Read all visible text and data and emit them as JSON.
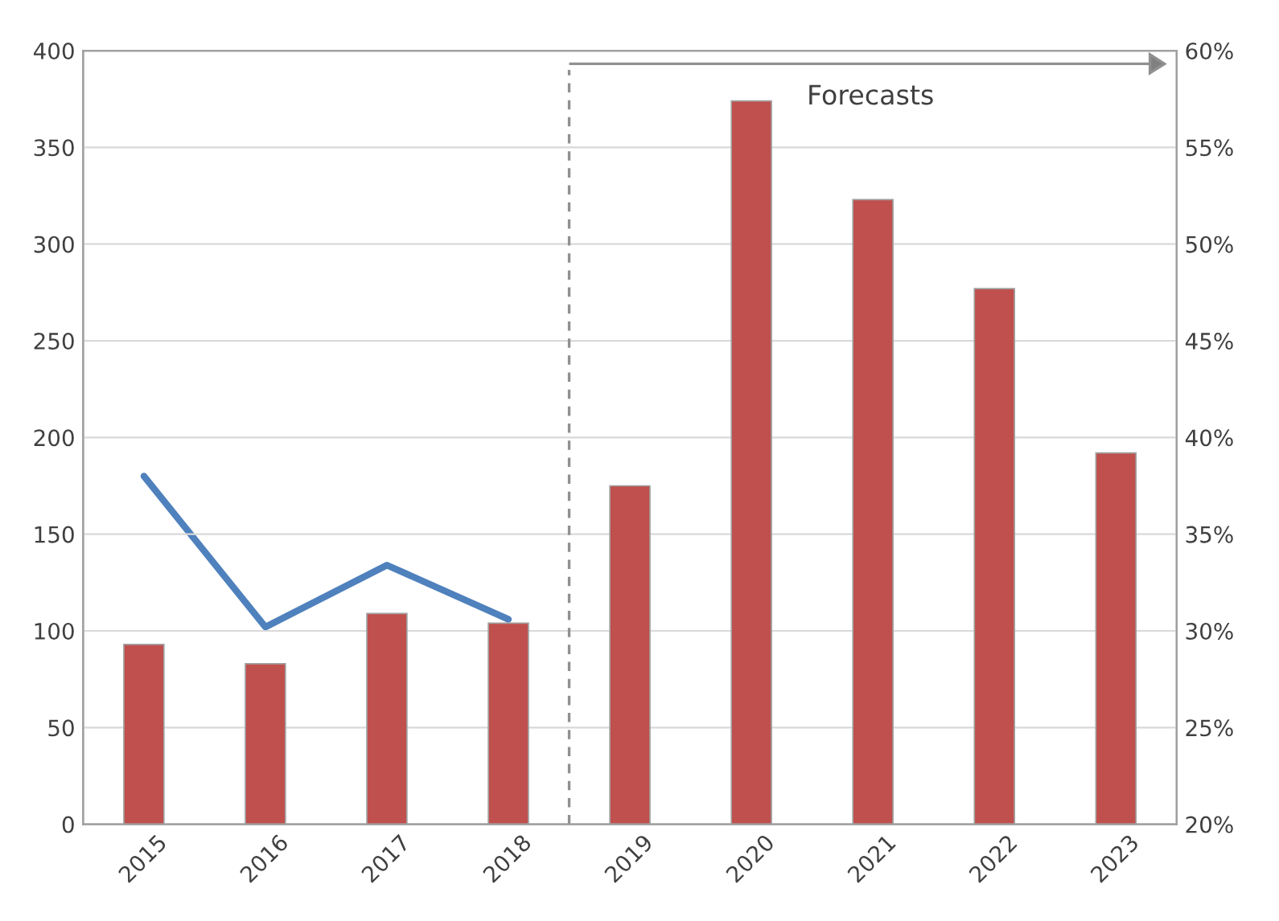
{
  "chart_data": {
    "type": "bar",
    "categories": [
      "2015",
      "2016",
      "2017",
      "2018",
      "2019",
      "2020",
      "2021",
      "2022",
      "2023"
    ],
    "series": [
      {
        "type": "bar",
        "color": "#c0504d",
        "values": [
          93,
          83,
          109,
          104,
          175,
          374,
          323,
          277,
          192
        ]
      },
      {
        "type": "line",
        "axis": "y2",
        "color": "#4f81bd",
        "values": [
          38,
          30.2,
          33.4,
          30.6,
          null,
          null,
          null,
          null,
          null
        ]
      }
    ],
    "ylim": [
      0,
      400
    ],
    "yticks": [
      0,
      50,
      100,
      150,
      200,
      250,
      300,
      350,
      400
    ],
    "y2lim": [
      20,
      60
    ],
    "y2ticks": [
      {
        "value": 20,
        "label": "20%"
      },
      {
        "value": 25,
        "label": "25%"
      },
      {
        "value": 30,
        "label": "30%"
      },
      {
        "value": 35,
        "label": "35%"
      },
      {
        "value": 40,
        "label": "40%"
      },
      {
        "value": 45,
        "label": "45%"
      },
      {
        "value": 50,
        "label": "50%"
      },
      {
        "value": 55,
        "label": "55%"
      },
      {
        "value": 60,
        "label": "60%"
      }
    ],
    "annotations": [
      "Forecasts"
    ],
    "grid": "y",
    "legend": false,
    "marker": "none",
    "line_style": "solid"
  }
}
